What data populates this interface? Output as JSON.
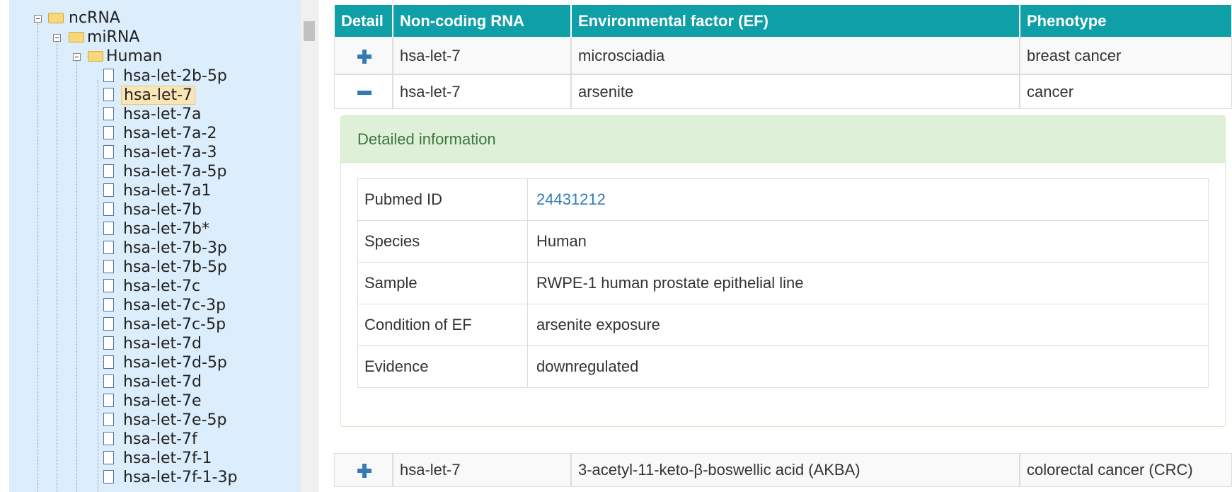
{
  "tree": {
    "root": "ncRNA",
    "child": "miRNA",
    "grandchild": "Human",
    "selected": 1,
    "leaves": [
      "hsa-let-2b-5p",
      "hsa-let-7",
      "hsa-let-7a",
      "hsa-let-7a-2",
      "hsa-let-7a-3",
      "hsa-let-7a-5p",
      "hsa-let-7a1",
      "hsa-let-7b",
      "hsa-let-7b*",
      "hsa-let-7b-3p",
      "hsa-let-7b-5p",
      "hsa-let-7c",
      "hsa-let-7c-3p",
      "hsa-let-7c-5p",
      "hsa-let-7d",
      "hsa-let-7d-5p",
      "hsa-let-7d",
      "hsa-let-7e",
      "hsa-let-7e-5p",
      "hsa-let-7f",
      "hsa-let-7f-1",
      "hsa-let-7f-1-3p"
    ]
  },
  "table": {
    "headers": [
      "Detail",
      "Non-coding RNA",
      "Environmental factor (EF)",
      "Phenotype"
    ],
    "rows": [
      [
        "hsa-let-7",
        "microsciadia",
        "breast cancer"
      ],
      [
        "hsa-let-7",
        "arsenite",
        "cancer"
      ],
      [
        "hsa-let-7",
        "3-acetyl-11-keto-β-boswellic acid (AKBA)",
        "colorectal cancer (CRC)"
      ]
    ],
    "detail": {
      "heading": "Detailed information",
      "fields": [
        [
          "Pubmed ID",
          "24431212"
        ],
        [
          "Species",
          "Human"
        ],
        [
          "Sample",
          "RWPE-1 human prostate epithelial line"
        ],
        [
          "Condition of EF",
          "arsenite exposure"
        ],
        [
          "Evidence",
          "downregulated"
        ]
      ]
    }
  }
}
